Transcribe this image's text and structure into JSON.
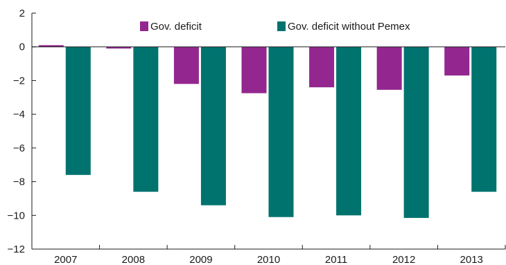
{
  "chart_data": {
    "type": "bar",
    "title": "",
    "xlabel": "",
    "ylabel": "",
    "categories": [
      "2007",
      "2008",
      "2009",
      "2010",
      "2011",
      "2012",
      "2013"
    ],
    "series": [
      {
        "name": "Gov. deficit",
        "color": "#93278F",
        "values": [
          0.1,
          -0.1,
          -2.2,
          -2.75,
          -2.4,
          -2.55,
          -1.7
        ]
      },
      {
        "name": "Gov. deficit without Pemex",
        "color": "#00736F",
        "values": [
          -7.6,
          -8.6,
          -9.4,
          -10.1,
          -10.0,
          -10.15,
          -8.6
        ]
      }
    ],
    "ylim": [
      -12,
      2
    ],
    "yticks": [
      2,
      0,
      -2,
      -4,
      -6,
      -8,
      -10,
      -12
    ],
    "ytick_labels": [
      "2",
      "0",
      "−2",
      "−4",
      "−6",
      "−8",
      "−10",
      "−12"
    ],
    "grid": false,
    "legend_position": "top"
  }
}
